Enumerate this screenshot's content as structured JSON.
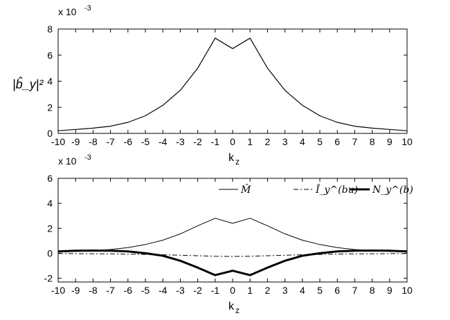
{
  "chart_data": [
    {
      "type": "line",
      "ylabel": "|b̂_y|²",
      "xlabel": "k",
      "xlabel_sub": "z",
      "scale_label": "x 10",
      "scale_exp": "-3",
      "xlim": [
        -10,
        10
      ],
      "ylim": [
        0,
        8
      ],
      "xticks": [
        -10,
        -9,
        -8,
        -7,
        -6,
        -5,
        -4,
        -3,
        -2,
        -1,
        0,
        1,
        2,
        3,
        4,
        5,
        6,
        7,
        8,
        9,
        10
      ],
      "yticks": [
        0,
        2,
        4,
        6,
        8
      ],
      "grid": false,
      "series": [
        {
          "color": "#000000",
          "line_style": "solid",
          "x": [
            -10,
            -9,
            -8,
            -7,
            -6,
            -5,
            -4,
            -3,
            -2,
            -1,
            0,
            1,
            2,
            3,
            4,
            5,
            6,
            7,
            8,
            9,
            10
          ],
          "values": [
            0.2,
            0.3,
            0.4,
            0.55,
            0.85,
            1.35,
            2.15,
            3.3,
            5.0,
            7.3,
            6.5,
            7.3,
            5.0,
            3.3,
            2.15,
            1.35,
            0.85,
            0.55,
            0.4,
            0.3,
            0.2
          ]
        }
      ]
    },
    {
      "type": "line",
      "ylabel": "",
      "xlabel": "k",
      "xlabel_sub": "z",
      "scale_label": "x 10",
      "scale_exp": "-3",
      "xlim": [
        -10,
        10
      ],
      "ylim": [
        -2.3,
        6
      ],
      "xticks": [
        -10,
        -9,
        -8,
        -7,
        -6,
        -5,
        -4,
        -3,
        -2,
        -1,
        0,
        1,
        2,
        3,
        4,
        5,
        6,
        7,
        8,
        9,
        10
      ],
      "yticks": [
        -2,
        0,
        2,
        4,
        6
      ],
      "grid": false,
      "legend_position": "top-right",
      "series": [
        {
          "name": "M̂",
          "color": "#000000",
          "line_style": "solid",
          "line_width": 1,
          "x": [
            -10,
            -9,
            -8,
            -7,
            -6,
            -5,
            -4,
            -3,
            -2,
            -1,
            0,
            1,
            2,
            3,
            4,
            5,
            6,
            7,
            8,
            9,
            10
          ],
          "values": [
            0.1,
            0.15,
            0.2,
            0.3,
            0.45,
            0.7,
            1.05,
            1.55,
            2.2,
            2.8,
            2.4,
            2.8,
            2.2,
            1.55,
            1.05,
            0.7,
            0.45,
            0.3,
            0.2,
            0.15,
            0.1
          ]
        },
        {
          "name": "Î_y^(bu)",
          "color": "#000000",
          "line_style": "dashdot",
          "line_width": 1,
          "x": [
            -10,
            -9,
            -8,
            -7,
            -6,
            -5,
            -4,
            -3,
            -2,
            -1,
            0,
            1,
            2,
            3,
            4,
            5,
            6,
            7,
            8,
            9,
            10
          ],
          "values": [
            -0.02,
            -0.03,
            -0.04,
            -0.05,
            -0.07,
            -0.09,
            -0.12,
            -0.16,
            -0.2,
            -0.24,
            -0.25,
            -0.24,
            -0.2,
            -0.16,
            -0.12,
            -0.09,
            -0.07,
            -0.05,
            -0.04,
            -0.03,
            -0.02
          ]
        },
        {
          "name": "N_y^(b)",
          "color": "#000000",
          "line_style": "solid",
          "line_width": 3,
          "x": [
            -10,
            -9,
            -8,
            -7,
            -6,
            -5,
            -4,
            -3,
            -2,
            -1,
            0,
            1,
            2,
            3,
            4,
            5,
            6,
            7,
            8,
            9,
            10
          ],
          "values": [
            0.15,
            0.2,
            0.22,
            0.2,
            0.15,
            0.0,
            -0.2,
            -0.6,
            -1.15,
            -1.75,
            -1.4,
            -1.75,
            -1.15,
            -0.6,
            -0.2,
            0.0,
            0.15,
            0.2,
            0.22,
            0.2,
            0.15
          ]
        }
      ]
    }
  ]
}
